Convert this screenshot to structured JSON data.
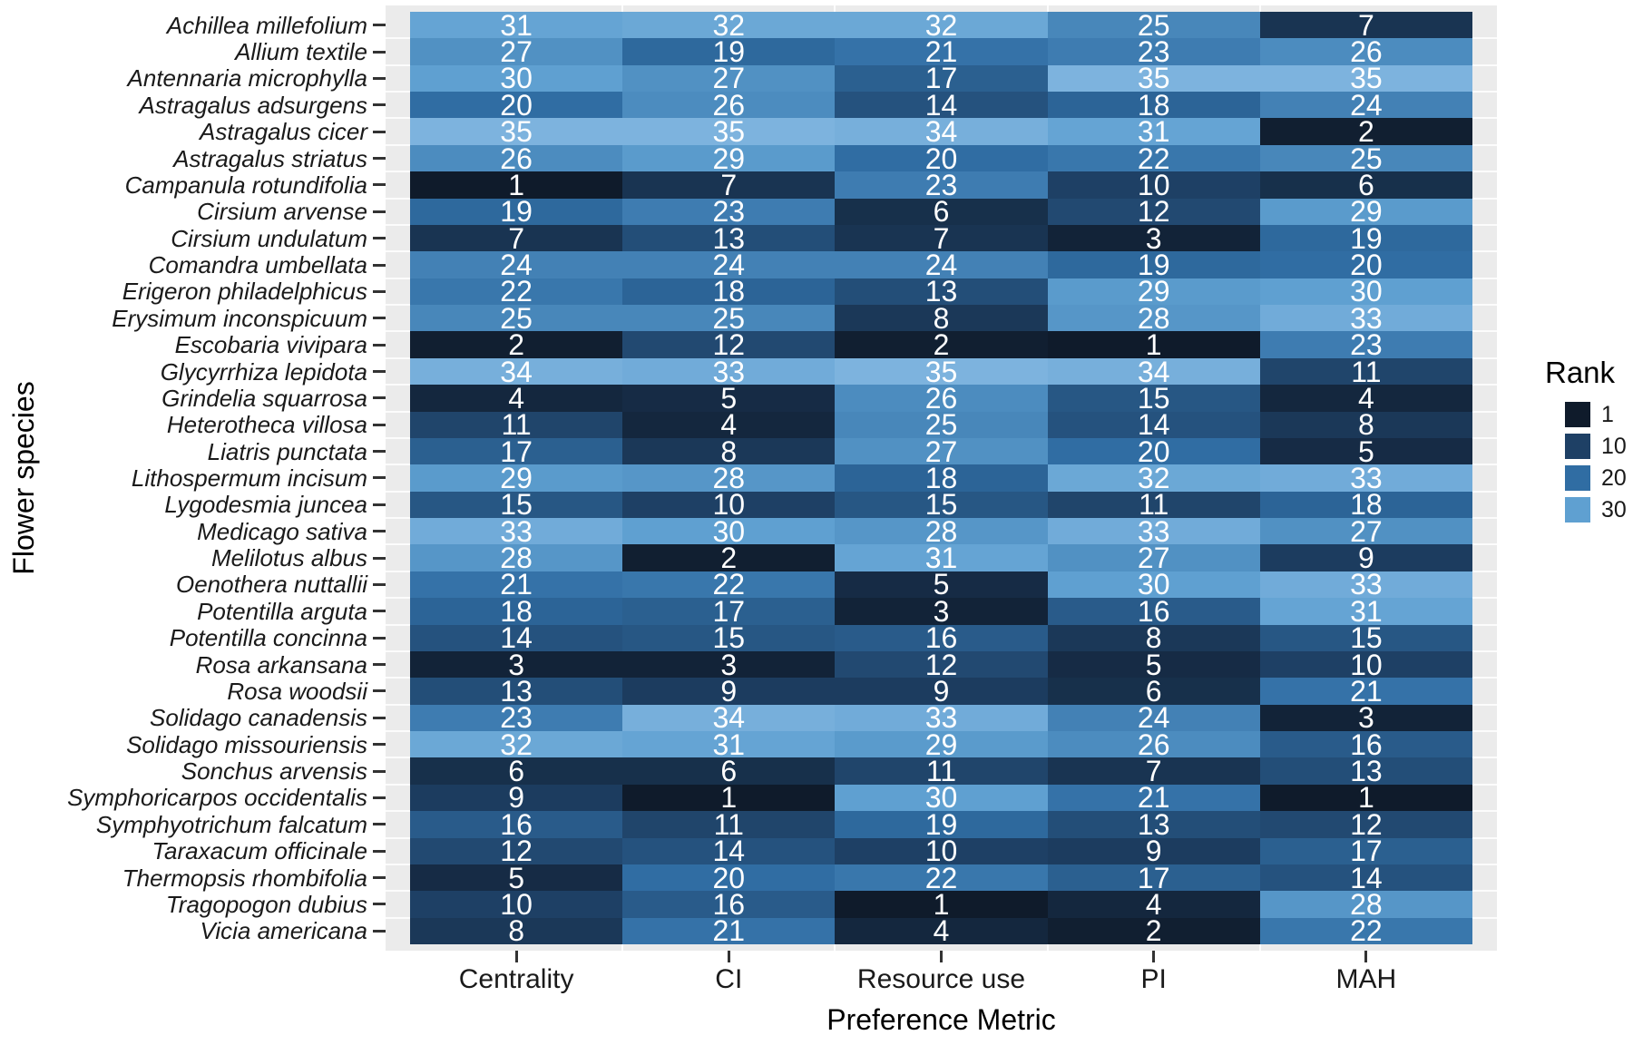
{
  "chart_data": {
    "type": "heatmap",
    "title": "",
    "xlabel": "Preference Metric",
    "ylabel": "Flower species",
    "columns": [
      "Centrality",
      "CI",
      "Resource use",
      "PI",
      "MAH"
    ],
    "rows": [
      "Achillea millefolium",
      "Allium textile",
      "Antennaria microphylla",
      "Astragalus adsurgens",
      "Astragalus cicer",
      "Astragalus striatus",
      "Campanula rotundifolia",
      "Cirsium arvense",
      "Cirsium undulatum",
      "Comandra umbellata",
      "Erigeron philadelphicus",
      "Erysimum inconspicuum",
      "Escobaria vivipara",
      "Glycyrrhiza lepidota",
      "Grindelia squarrosa",
      "Heterotheca villosa",
      "Liatris punctata",
      "Lithospermum incisum",
      "Lygodesmia juncea",
      "Medicago sativa",
      "Melilotus albus",
      "Oenothera nuttallii",
      "Potentilla arguta",
      "Potentilla concinna",
      "Rosa arkansana",
      "Rosa woodsii",
      "Solidago canadensis",
      "Solidago missouriensis",
      "Sonchus arvensis",
      "Symphoricarpos occidentalis",
      "Symphyotrichum falcatum",
      "Taraxacum officinale",
      "Thermopsis rhombifolia",
      "Tragopogon dubius",
      "Vicia americana"
    ],
    "values": [
      [
        31,
        32,
        32,
        25,
        7
      ],
      [
        27,
        19,
        21,
        23,
        26
      ],
      [
        30,
        27,
        17,
        35,
        35
      ],
      [
        20,
        26,
        14,
        18,
        24
      ],
      [
        35,
        35,
        34,
        31,
        2
      ],
      [
        26,
        29,
        20,
        22,
        25
      ],
      [
        1,
        7,
        23,
        10,
        6
      ],
      [
        19,
        23,
        6,
        12,
        29
      ],
      [
        7,
        13,
        7,
        3,
        19
      ],
      [
        24,
        24,
        24,
        19,
        20
      ],
      [
        22,
        18,
        13,
        29,
        30
      ],
      [
        25,
        25,
        8,
        28,
        33
      ],
      [
        2,
        12,
        2,
        1,
        23
      ],
      [
        34,
        33,
        35,
        34,
        11
      ],
      [
        4,
        5,
        26,
        15,
        4
      ],
      [
        11,
        4,
        25,
        14,
        8
      ],
      [
        17,
        8,
        27,
        20,
        5
      ],
      [
        29,
        28,
        18,
        32,
        33
      ],
      [
        15,
        10,
        15,
        11,
        18
      ],
      [
        33,
        30,
        28,
        33,
        27
      ],
      [
        28,
        2,
        31,
        27,
        9
      ],
      [
        21,
        22,
        5,
        30,
        33
      ],
      [
        18,
        17,
        3,
        16,
        31
      ],
      [
        14,
        15,
        16,
        8,
        15
      ],
      [
        3,
        3,
        12,
        5,
        10
      ],
      [
        13,
        9,
        9,
        6,
        21
      ],
      [
        23,
        34,
        33,
        24,
        3
      ],
      [
        32,
        31,
        29,
        26,
        16
      ],
      [
        6,
        6,
        11,
        7,
        13
      ],
      [
        9,
        1,
        30,
        21,
        1
      ],
      [
        16,
        11,
        19,
        13,
        12
      ],
      [
        12,
        14,
        10,
        9,
        17
      ],
      [
        5,
        20,
        22,
        17,
        14
      ],
      [
        10,
        16,
        1,
        4,
        28
      ],
      [
        8,
        21,
        4,
        2,
        22
      ]
    ],
    "value_range": [
      1,
      35
    ],
    "legend": {
      "title": "Rank",
      "ticks": [
        1,
        10,
        20,
        30
      ]
    },
    "colors": {
      "scale_anchors": [
        [
          1,
          "#0f1b2b"
        ],
        [
          10,
          "#1e4065"
        ],
        [
          20,
          "#306da3"
        ],
        [
          30,
          "#5fa0d1"
        ],
        [
          35,
          "#7db3de"
        ]
      ],
      "panel_bg": "#ebebeb",
      "grid_line": "#ffffff",
      "cell_text": "#ffffff",
      "axis_text": "#333333"
    }
  }
}
